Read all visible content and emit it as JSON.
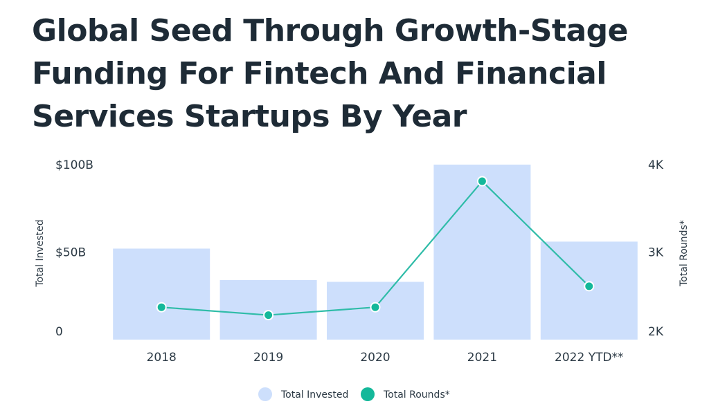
{
  "title": "Global Seed Through Growth-Stage Funding For Fintech And Financial Services Startups By Year",
  "colors": {
    "title": "#1e2b36",
    "bar": "#cddffc",
    "line": "#2fbca8",
    "marker": "#14b89a",
    "text": "#2c3a45"
  },
  "chart_data": {
    "type": "bar",
    "title": "Global Seed Through Growth-Stage Funding For Fintech And Financial Services Startups By Year",
    "categories": [
      "2018",
      "2019",
      "2020",
      "2021",
      "2022 YTD**"
    ],
    "series": [
      {
        "name": "Total Invested",
        "type": "bar",
        "axis": "left",
        "values": [
          52,
          34,
          33,
          100,
          56
        ]
      },
      {
        "name": "Total Rounds*",
        "type": "line",
        "axis": "right",
        "values": [
          2370,
          2280,
          2370,
          3810,
          2610
        ]
      }
    ],
    "ylabel": "Total Invested",
    "y2label": "Total Rounds*",
    "ylim": [
      0,
      100
    ],
    "y2lim": [
      2000,
      4000
    ],
    "yticks": [
      {
        "value": 0,
        "label": "0"
      },
      {
        "value": 50,
        "label": "$50B"
      },
      {
        "value": 100,
        "label": "$100B"
      }
    ],
    "y2ticks": [
      {
        "value": 2000,
        "label": "2K"
      },
      {
        "value": 3000,
        "label": "3K"
      },
      {
        "value": 4000,
        "label": "4K"
      }
    ],
    "legend": [
      {
        "name": "Total Invested",
        "marker": "circle",
        "color": "#cddffc"
      },
      {
        "name": "Total Rounds*",
        "marker": "circle",
        "color": "#14b89a"
      }
    ],
    "legend_position": "bottom",
    "grid": false
  }
}
